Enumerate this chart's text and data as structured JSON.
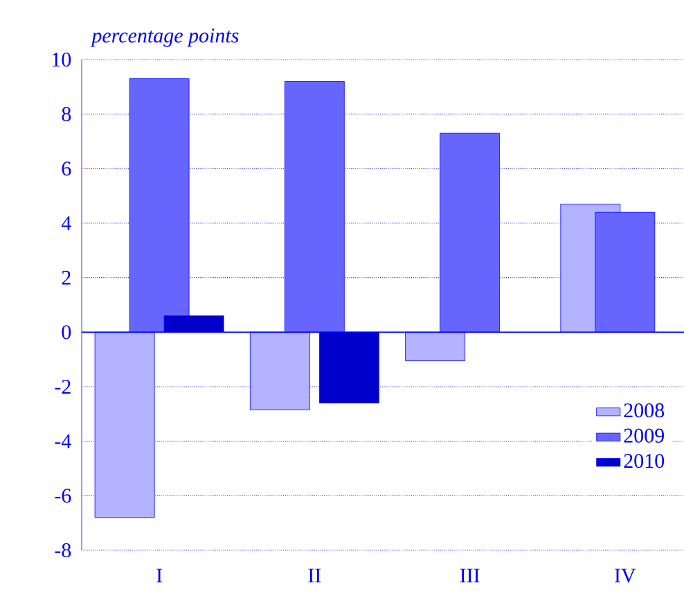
{
  "chart_data": {
    "type": "bar",
    "ylabel": "percentage points",
    "categories": [
      "I",
      "II",
      "III",
      "IV"
    ],
    "series": [
      {
        "name": "2008",
        "color": "#b3b3ff",
        "values": [
          -6.8,
          -2.85,
          -1.05,
          4.7
        ]
      },
      {
        "name": "2009",
        "color": "#6666ff",
        "values": [
          9.3,
          9.2,
          7.3,
          4.4
        ]
      },
      {
        "name": "2010",
        "color": "#0000cc",
        "values": [
          0.6,
          -2.6,
          null,
          null
        ]
      }
    ],
    "ylim": [
      -8,
      10
    ],
    "yticks": [
      -8,
      -6,
      -4,
      -2,
      0,
      2,
      4,
      6,
      8,
      10
    ],
    "grid": "y",
    "legend": "bottom right",
    "ref_lines": [
      {
        "axis": "y",
        "value": 0,
        "color": "#0000ff"
      }
    ]
  }
}
